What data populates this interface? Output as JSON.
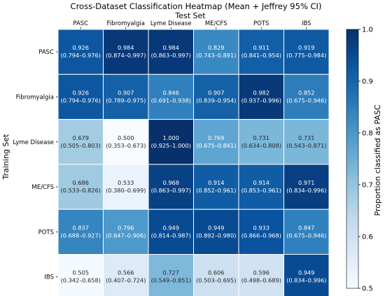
{
  "chart_data": {
    "type": "heatmap",
    "title": "Cross-Dataset Classification Heatmap (Mean + Jeffrey 95% CI)",
    "xlabel": "Test Set",
    "ylabel": "Training Set",
    "x_categories": [
      "PASC",
      "Fibromyalgia",
      "Lyme Disease",
      "ME/CFS",
      "POTS",
      "IBS"
    ],
    "y_categories": [
      "PASC",
      "Fibromyalgia",
      "Lyme Disease",
      "ME/CFS",
      "POTS",
      "IBS"
    ],
    "values": [
      [
        0.926,
        0.984,
        0.984,
        0.829,
        0.911,
        0.919
      ],
      [
        0.926,
        0.907,
        0.846,
        0.907,
        0.982,
        0.852
      ],
      [
        0.679,
        0.5,
        1.0,
        0.769,
        0.731,
        0.731
      ],
      [
        0.686,
        0.533,
        0.968,
        0.914,
        0.914,
        0.971
      ],
      [
        0.837,
        0.796,
        0.949,
        0.949,
        0.933,
        0.847
      ],
      [
        0.505,
        0.566,
        0.727,
        0.606,
        0.596,
        0.949
      ]
    ],
    "value_labels": [
      [
        "0.926",
        "0.984",
        "0.984",
        "0.829",
        "0.911",
        "0.919"
      ],
      [
        "0.926",
        "0.907",
        "0.846",
        "0.907",
        "0.982",
        "0.852"
      ],
      [
        "0.679",
        "0.500",
        "1.000",
        "0.769",
        "0.731",
        "0.731"
      ],
      [
        "0.686",
        "0.533",
        "0.968",
        "0.914",
        "0.914",
        "0.971"
      ],
      [
        "0.837",
        "0.796",
        "0.949",
        "0.949",
        "0.933",
        "0.847"
      ],
      [
        "0.505",
        "0.566",
        "0.727",
        "0.606",
        "0.596",
        "0.949"
      ]
    ],
    "ci_labels": [
      [
        "(0.794–0.976)",
        "(0.874–0.997)",
        "(0.863–0.997)",
        "(0.743–0.891)",
        "(0.841–0.954)",
        "(0.775–0.984)"
      ],
      [
        "(0.794–0.976)",
        "(0.789–0.975)",
        "(0.691–0.938)",
        "(0.839–0.954)",
        "(0.937–0.996)",
        "(0.675–0.946)"
      ],
      [
        "(0.505–0.803)",
        "(0.353–0.673)",
        "(0.925–1.000)",
        "(0.675–0.841)",
        "(0.634–0.808)",
        "(0.543–0.871)"
      ],
      [
        "(0.533–0.826)",
        "(0.380–0.699)",
        "(0.863–0.997)",
        "(0.852–0.961)",
        "(0.853–0.961)",
        "(0.834–0.996)"
      ],
      [
        "(0.688–0.927)",
        "(0.647–0.906)",
        "(0.814–0.987)",
        "(0.892–0.980)",
        "(0.866–0.968)",
        "(0.675–0.946)"
      ],
      [
        "(0.342–0.658)",
        "(0.407–0.724)",
        "(0.549–0.851)",
        "(0.503–0.695)",
        "(0.498–0.689)",
        "(0.834–0.996)"
      ]
    ],
    "colorbar": {
      "label": "Proportion classified as PASC",
      "vmin": 0.5,
      "vmax": 1.0,
      "ticks": [
        "0.5",
        "0.6",
        "0.7",
        "0.8",
        "0.9",
        "1.0"
      ],
      "colormap": "Blues"
    },
    "x_axis_position": "top",
    "grid": false,
    "cell_border_color": "#ffffff"
  }
}
